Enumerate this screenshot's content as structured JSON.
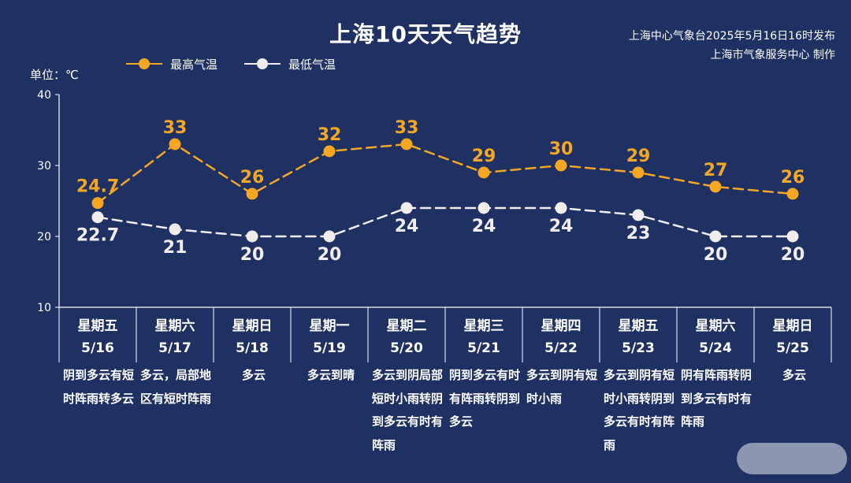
{
  "title": "上海10天天气趋势",
  "issuer": {
    "line1": "上海中心气象台2025年5月16日16时发布",
    "line2": "上海市气象服务中心 制作"
  },
  "unit_label": "单位：℃",
  "legend": {
    "high": "最高气温",
    "low": "最低气温"
  },
  "colors": {
    "background": "#1f3163",
    "high": "#f5a623",
    "low": "#f2eded",
    "axis": "#ffffff"
  },
  "chart_data": {
    "type": "line",
    "categories": [
      "5/16",
      "5/17",
      "5/18",
      "5/19",
      "5/20",
      "5/21",
      "5/22",
      "5/23",
      "5/24",
      "5/25"
    ],
    "weekdays": [
      "星期五",
      "星期六",
      "星期日",
      "星期一",
      "星期二",
      "星期三",
      "星期四",
      "星期五",
      "星期六",
      "星期日"
    ],
    "series": [
      {
        "name": "最高气温",
        "values": [
          24.7,
          33,
          26,
          32,
          33,
          29,
          30,
          29,
          27,
          26
        ],
        "labels": [
          "24.7",
          "33",
          "26",
          "32",
          "33",
          "29",
          "30",
          "29",
          "27",
          "26"
        ]
      },
      {
        "name": "最低气温",
        "values": [
          22.7,
          21,
          20,
          20,
          24,
          24,
          24,
          23,
          20,
          20
        ],
        "labels": [
          "22.7",
          "21",
          "20",
          "20",
          "24",
          "24",
          "24",
          "23",
          "20",
          "20"
        ]
      }
    ],
    "ylim": [
      10,
      40
    ],
    "yticks": [
      "40",
      "30",
      "20",
      "10"
    ],
    "line_style": "dashed",
    "descriptions": [
      "阴到多云有短时阵雨转多云",
      "多云，局部地区有短时阵雨",
      "多云",
      "多云到晴",
      "多云到阴局部短时小雨转阴到多云有时有阵雨",
      "阴到多云有时有阵雨转阴到多云",
      "多云到阴有短时小雨",
      "多云到阴有短时小雨转阴到多云有时有阵雨",
      "阴有阵雨转阴到多云有时有阵雨",
      "多云"
    ]
  }
}
